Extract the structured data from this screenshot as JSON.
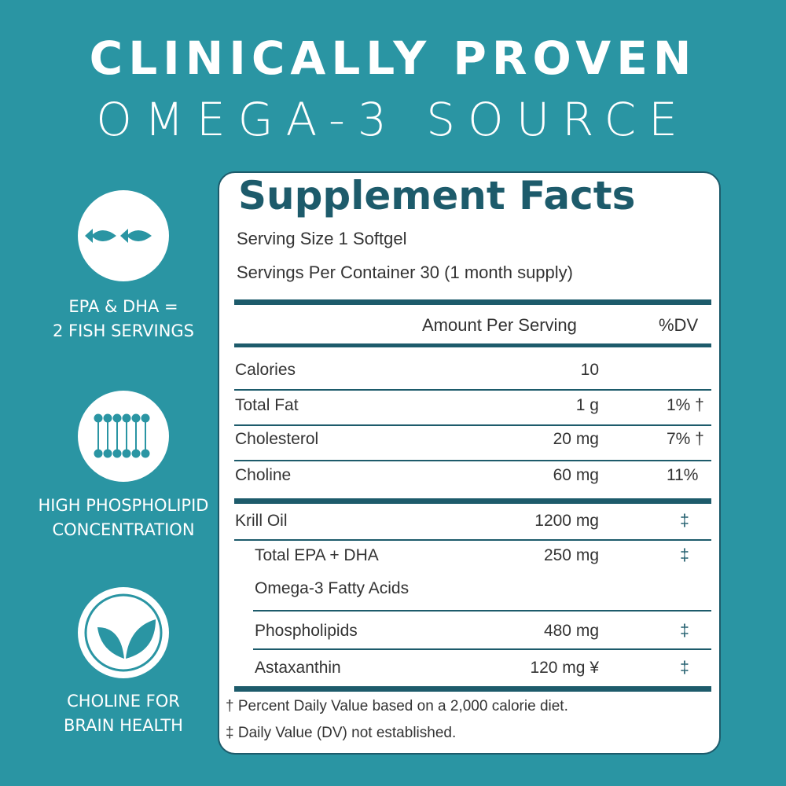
{
  "header": {
    "line1": "CLINICALLY PROVEN",
    "line2": "OMEGA-3 SOURCE"
  },
  "features": [
    {
      "lines": [
        "EPA & DHA =",
        "2 FISH SERVINGS"
      ]
    },
    {
      "lines": [
        "HIGH PHOSPHOLIPID",
        "CONCENTRATION"
      ]
    },
    {
      "lines": [
        "CHOLINE FOR",
        "BRAIN HEALTH"
      ]
    }
  ],
  "facts": {
    "title": "Supplement Facts",
    "serving_size": "Serving Size 1 Softgel",
    "servings_per_container": "Servings Per Container 30 (1 month supply)",
    "columns": {
      "amount": "Amount Per Serving",
      "dv": "%DV"
    },
    "rows": [
      {
        "name": "Calories",
        "amount": "10"
      },
      {
        "name": "Total Fat",
        "amount": "1 g",
        "dv": "1% †"
      },
      {
        "name": "Cholesterol",
        "amount": "20 mg",
        "dv": "7% †"
      },
      {
        "name": "Choline",
        "amount": "60 mg",
        "dv": "11%"
      },
      {
        "name": "Krill Oil",
        "amount": "1200 mg",
        "dv": "‡"
      },
      {
        "name": "Total EPA + DHA",
        "note": "Omega-3 Fatty Acids",
        "amount": "250 mg",
        "dv": "‡"
      },
      {
        "name": "Phospholipids",
        "amount": "480 mg",
        "dv": "‡"
      },
      {
        "name": "Astaxanthin",
        "amount": "120 mg ¥",
        "dv": "‡"
      }
    ],
    "footnotes": [
      "† Percent Daily Value based on a 2,000 calorie diet.",
      "‡ Daily Value (DV) not established."
    ]
  }
}
